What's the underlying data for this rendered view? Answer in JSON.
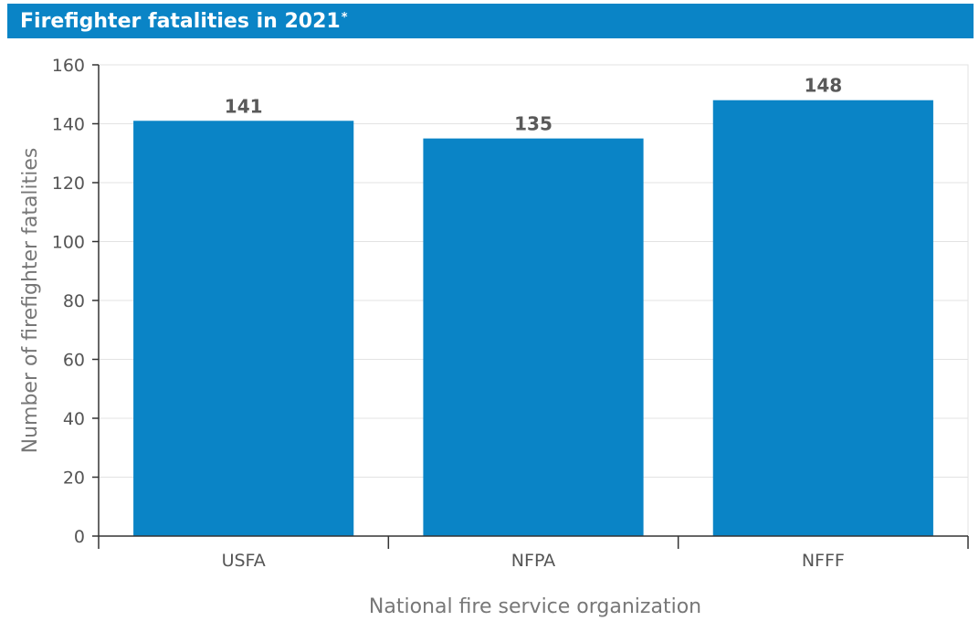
{
  "chart_data": {
    "type": "bar",
    "title": "Firefighter fatalities in 2021",
    "title_note_marker": "*",
    "categories": [
      "USFA",
      "NFPA",
      "NFFF"
    ],
    "values": [
      141,
      135,
      148
    ],
    "data_labels": [
      "141",
      "135",
      "148"
    ],
    "xlabel": "National fire service organization",
    "ylabel": "Number of firefighter fatalities",
    "ylim": [
      0,
      160
    ],
    "yticks": [
      0,
      20,
      40,
      60,
      80,
      100,
      120,
      140,
      160
    ],
    "grid": true,
    "legend": "none",
    "colors": {
      "bar": "#0a84c6",
      "title_bar": "#0a84c6",
      "grid": "#e3e3e3",
      "axis": "#333333"
    }
  }
}
